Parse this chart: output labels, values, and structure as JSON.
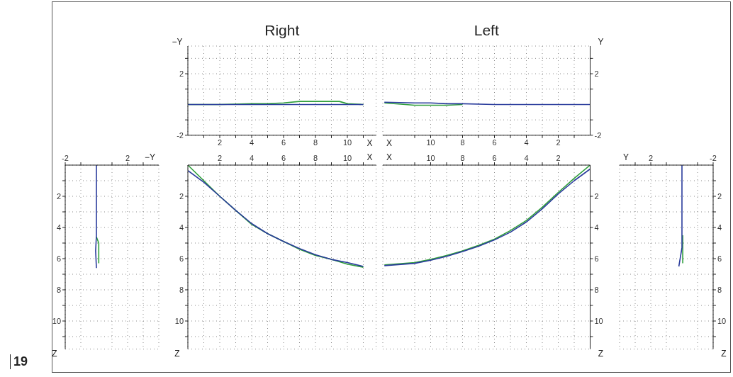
{
  "chart_data": [
    {
      "type": "line",
      "title": "Right",
      "ylabel": "−Y",
      "xlabel": "X",
      "annotations": [
        "19"
      ],
      "xlim": [
        0,
        11.8
      ],
      "ylim": [
        -2,
        3.8
      ],
      "grid": true,
      "xticks": [
        {
          "value": 1,
          "label": null
        },
        2,
        {
          "value": 3,
          "label": null
        },
        4,
        {
          "value": 5,
          "label": null
        },
        6,
        {
          "value": 7,
          "label": null
        },
        8,
        {
          "value": 9,
          "label": null
        },
        10,
        {
          "value": 11,
          "label": null
        }
      ],
      "yticks": [
        -2,
        {
          "value": -1,
          "label": null
        },
        {
          "value": 1,
          "label": null
        },
        2,
        {
          "value": 3,
          "label": null
        }
      ],
      "series": [
        {
          "color": "#2e9e3a",
          "x": [
            0,
            2,
            4,
            5,
            6,
            7,
            8,
            9,
            9.5,
            10,
            11
          ],
          "values": [
            0,
            0,
            0.05,
            0.05,
            0.1,
            0.2,
            0.2,
            0.2,
            0.2,
            0.05,
            0
          ]
        },
        {
          "color": "#2a3c9c",
          "x": [
            0,
            2,
            4,
            6,
            8,
            10,
            11
          ],
          "values": [
            0,
            0,
            0,
            0,
            0,
            0,
            0
          ]
        }
      ]
    },
    {
      "type": "line",
      "title": "Left",
      "ylabel": "Y",
      "xlabel": "X",
      "xlim": [
        13,
        0
      ],
      "ylim": [
        -2,
        3.8
      ],
      "grid": true,
      "xticks": [
        {
          "value": 1,
          "label": null
        },
        2,
        {
          "value": 3,
          "label": null
        },
        4,
        {
          "value": 5,
          "label": null
        },
        6,
        {
          "value": 7,
          "label": null
        },
        8,
        {
          "value": 9,
          "label": null
        },
        10,
        {
          "value": 11,
          "label": null
        }
      ],
      "yticks": [
        -2,
        {
          "value": -1,
          "label": null
        },
        {
          "value": 1,
          "label": null
        },
        2,
        {
          "value": 3,
          "label": null
        }
      ],
      "series": [
        {
          "color": "#2e9e3a",
          "x": [
            12.9,
            11,
            10,
            9,
            8
          ],
          "values": [
            0.1,
            -0.05,
            -0.05,
            -0.05,
            0
          ]
        },
        {
          "color": "#2a3c9c",
          "x": [
            12.9,
            11,
            10,
            9,
            8,
            6,
            4,
            2,
            0
          ],
          "values": [
            0.15,
            0.1,
            0.1,
            0.05,
            0.05,
            0,
            0,
            0,
            0
          ]
        }
      ]
    },
    {
      "type": "line",
      "xlabel": "−Y",
      "ylabel": "Z",
      "xlim": [
        -2,
        4
      ],
      "ylim": [
        11.8,
        0
      ],
      "grid": true,
      "xticks": [
        -2,
        {
          "value": -1,
          "label": null
        },
        {
          "value": 1,
          "label": null
        },
        2,
        {
          "value": 3,
          "label": null
        }
      ],
      "yticks": [
        {
          "value": 1,
          "label": null
        },
        2,
        {
          "value": 3,
          "label": null
        },
        4,
        {
          "value": 5,
          "label": null
        },
        6,
        {
          "value": 7,
          "label": null
        },
        8,
        {
          "value": 9,
          "label": null
        },
        10,
        {
          "value": 11,
          "label": null
        }
      ],
      "series": [
        {
          "color": "#2e9e3a",
          "x": [
            0,
            0.15,
            0.15
          ],
          "values": [
            4.6,
            5,
            6.3
          ]
        },
        {
          "color": "#2a3c9c",
          "x": [
            0,
            0,
            0,
            -0.05,
            0
          ],
          "values": [
            0,
            3,
            4.5,
            5.5,
            6.6
          ]
        }
      ]
    },
    {
      "type": "line",
      "xlabel": "X",
      "ylabel": "Z",
      "xlim": [
        0,
        11.8
      ],
      "ylim": [
        11.8,
        0
      ],
      "grid": true,
      "xticks": [
        {
          "value": 1,
          "label": null
        },
        2,
        {
          "value": 3,
          "label": null
        },
        4,
        {
          "value": 5,
          "label": null
        },
        6,
        {
          "value": 7,
          "label": null
        },
        8,
        {
          "value": 9,
          "label": null
        },
        10,
        {
          "value": 11,
          "label": null
        }
      ],
      "yticks": [
        {
          "value": 1,
          "label": null
        },
        2,
        {
          "value": 3,
          "label": null
        },
        4,
        {
          "value": 5,
          "label": null
        },
        6,
        {
          "value": 7,
          "label": null
        },
        8,
        {
          "value": 9,
          "label": null
        },
        10,
        {
          "value": 11,
          "label": null
        }
      ],
      "series": [
        {
          "color": "#2e9e3a",
          "x": [
            0,
            1,
            2,
            3,
            4,
            5,
            6,
            7,
            8,
            9,
            10,
            11
          ],
          "values": [
            0,
            1.0,
            2.0,
            2.9,
            3.8,
            4.4,
            4.9,
            5.4,
            5.8,
            6.05,
            6.35,
            6.55
          ]
        },
        {
          "color": "#2a3c9c",
          "x": [
            0,
            1,
            2,
            3,
            4,
            5,
            6,
            7,
            8,
            9,
            10,
            11
          ],
          "values": [
            0.35,
            1.1,
            2.0,
            2.9,
            3.75,
            4.4,
            4.9,
            5.35,
            5.75,
            6.05,
            6.25,
            6.5
          ]
        }
      ]
    },
    {
      "type": "line",
      "xlabel": "X",
      "ylabel": "Z",
      "xlim": [
        13,
        0
      ],
      "ylim": [
        11.8,
        0
      ],
      "grid": true,
      "xticks": [
        {
          "value": 1,
          "label": null
        },
        2,
        {
          "value": 3,
          "label": null
        },
        4,
        {
          "value": 5,
          "label": null
        },
        6,
        {
          "value": 7,
          "label": null
        },
        8,
        {
          "value": 9,
          "label": null
        },
        10,
        {
          "value": 11,
          "label": null
        }
      ],
      "yticks": [
        {
          "value": 1,
          "label": null
        },
        2,
        {
          "value": 3,
          "label": null
        },
        4,
        {
          "value": 5,
          "label": null
        },
        6,
        {
          "value": 7,
          "label": null
        },
        8,
        {
          "value": 9,
          "label": null
        },
        10,
        {
          "value": 11,
          "label": null
        }
      ],
      "series": [
        {
          "color": "#2e9e3a",
          "x": [
            0,
            1,
            2,
            3,
            4,
            5,
            6,
            7,
            8,
            9,
            10,
            11,
            12.9
          ],
          "values": [
            0,
            0.85,
            1.75,
            2.7,
            3.55,
            4.2,
            4.75,
            5.15,
            5.5,
            5.8,
            6.05,
            6.25,
            6.4
          ]
        },
        {
          "color": "#2a3c9c",
          "x": [
            0,
            1,
            2,
            3,
            4,
            5,
            6,
            7,
            8,
            9,
            10,
            11,
            12.9
          ],
          "values": [
            0.25,
            1.0,
            1.85,
            2.8,
            3.65,
            4.3,
            4.8,
            5.2,
            5.55,
            5.85,
            6.1,
            6.3,
            6.45
          ]
        }
      ]
    },
    {
      "type": "line",
      "xlabel": "Y",
      "ylabel": "Z",
      "xlim": [
        4,
        -2
      ],
      "ylim": [
        11.8,
        0
      ],
      "grid": true,
      "xticks": [
        -2,
        {
          "value": -1,
          "label": null
        },
        {
          "value": 1,
          "label": null
        },
        2,
        {
          "value": 3,
          "label": null
        }
      ],
      "yticks": [
        {
          "value": 1,
          "label": null
        },
        2,
        {
          "value": 3,
          "label": null
        },
        4,
        {
          "value": 5,
          "label": null
        },
        6,
        {
          "value": 7,
          "label": null
        },
        8,
        {
          "value": 9,
          "label": null
        },
        10,
        {
          "value": 11,
          "label": null
        }
      ],
      "series": [
        {
          "color": "#2e9e3a",
          "x": [
            -0.05,
            -0.05
          ],
          "values": [
            4.5,
            6.3
          ]
        },
        {
          "color": "#2a3c9c",
          "x": [
            0,
            0,
            0.2
          ],
          "values": [
            0,
            5.3,
            6.5
          ]
        }
      ]
    }
  ]
}
